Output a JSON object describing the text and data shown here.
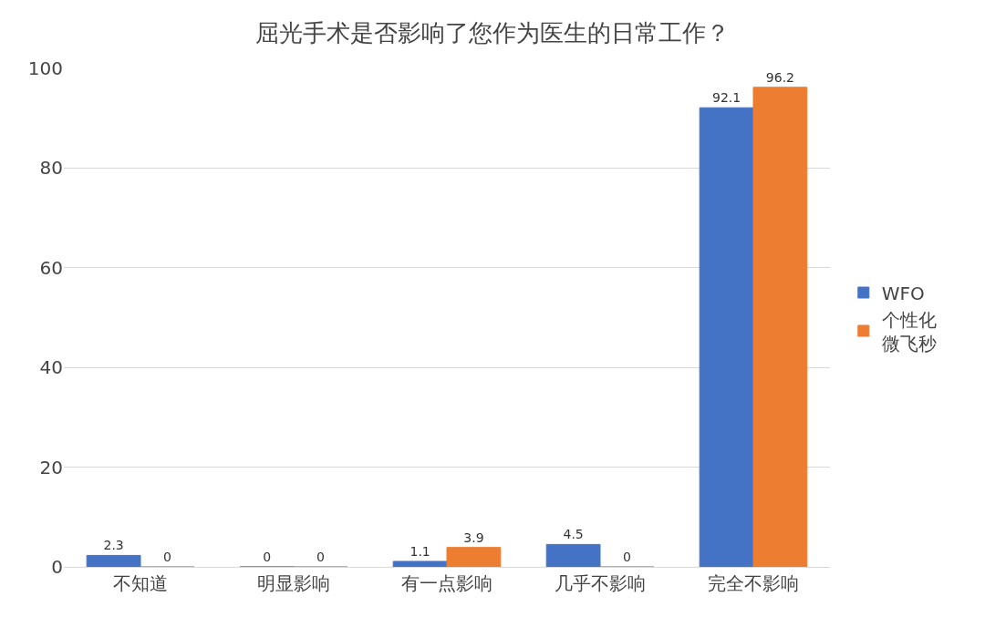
{
  "chart_data": {
    "type": "bar",
    "title": "屈光手术是否影响了您作为医生的日常工作？",
    "categories": [
      "不知道",
      "明显影响",
      "有一点影响",
      "几乎不影响",
      "完全不影响"
    ],
    "series": [
      {
        "name": "WFO",
        "color": "#4472c4",
        "values": [
          2.3,
          0,
          1.1,
          4.5,
          92.1
        ]
      },
      {
        "name": "个性化微飞秒",
        "color": "#ed7d31",
        "values": [
          0,
          0,
          3.9,
          0,
          96.2
        ]
      }
    ],
    "ylim": [
      0,
      100
    ],
    "yticks": [
      0,
      20,
      40,
      60,
      80,
      100
    ],
    "grid": "y",
    "legend": "right",
    "data_labels": true
  }
}
